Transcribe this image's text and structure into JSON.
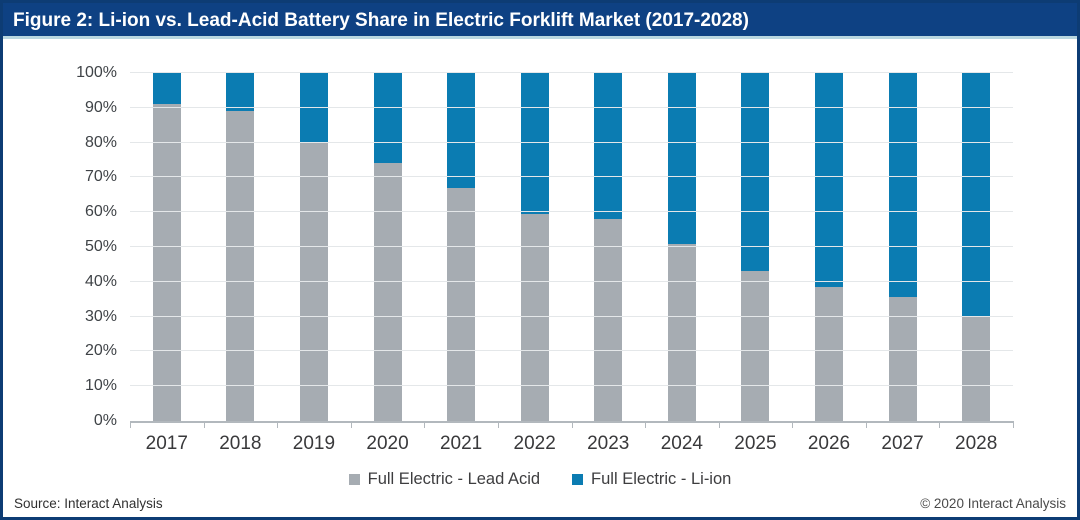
{
  "header": {
    "title": "Figure 2: Li-ion vs. Lead-Acid Battery Share in Electric Forklift Market (2017-2028)"
  },
  "footer": {
    "source": "Source: Interact Analysis",
    "copyright": "© 2020 Interact Analysis"
  },
  "colors": {
    "header_bg": "#0e4183",
    "frame_border": "#0d3c74",
    "lead_acid": "#a6acb2",
    "li_ion": "#0b7cb2",
    "axis_line": "#b2b8bd",
    "gridline": "#e4e7e9"
  },
  "chart_data": {
    "type": "bar",
    "subtype": "stacked-100-percent-column",
    "title": "Figure 2: Li-ion vs. Lead-Acid Battery Share in Electric Forklift Market (2017-2028)",
    "categories": [
      "2017",
      "2018",
      "2019",
      "2020",
      "2021",
      "2022",
      "2023",
      "2024",
      "2025",
      "2026",
      "2027",
      "2028"
    ],
    "series": [
      {
        "name": "Full Electric - Lead Acid",
        "color": "#a6acb2",
        "values": [
          91,
          89,
          80,
          74,
          67,
          59.5,
          58,
          51,
          43,
          38.5,
          35.5,
          30
        ]
      },
      {
        "name": "Full Electric - Li-ion",
        "color": "#0b7cb2",
        "values": [
          9,
          11,
          20,
          26,
          33,
          40.5,
          42,
          49,
          57,
          61.5,
          64.5,
          70
        ]
      }
    ],
    "xlabel": "",
    "ylabel": "",
    "ylim": [
      0,
      100
    ],
    "yticks": [
      0,
      10,
      20,
      30,
      40,
      50,
      60,
      70,
      80,
      90,
      100
    ],
    "ytick_suffix": "%",
    "grid": true,
    "legend_position": "bottom"
  }
}
